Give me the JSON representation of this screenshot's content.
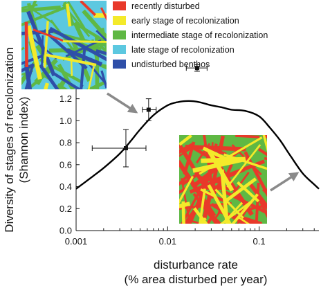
{
  "chart_data": {
    "type": "scatter",
    "x_scale": "log",
    "xlim": [
      0.001,
      0.45
    ],
    "ylim": [
      0,
      1.5
    ],
    "x_ticks": [
      0.001,
      0.01,
      0.1
    ],
    "x_tick_labels": [
      "0.001",
      "0.01",
      "0.1"
    ],
    "y_ticks": [
      0.0,
      0.2,
      0.4,
      0.6,
      0.8,
      1.0,
      1.2
    ],
    "y_tick_labels": [
      "0.0",
      "0.2",
      "0.4",
      "0.6",
      "0.8",
      "1.0",
      "1.2"
    ],
    "xlabel_line1": "disturbance rate",
    "xlabel_line2": "(% area disturbed per year)",
    "ylabel_line1": "Diversity of stages of recolonization",
    "ylabel_line2": "(Shannon index)",
    "points": [
      {
        "x": 0.0035,
        "y": 0.75,
        "x_err": [
          0.0015,
          0.0058
        ],
        "y_err": [
          0.58,
          0.92
        ]
      },
      {
        "x": 0.0062,
        "y": 1.1,
        "x_err": [
          0.0053,
          0.0075
        ],
        "y_err": [
          1.0,
          1.2
        ]
      },
      {
        "x": 0.021,
        "y": 1.48,
        "x_err": [
          0.016,
          0.027
        ],
        "y_err": [
          1.45,
          1.51
        ]
      }
    ],
    "curve": {
      "x": [
        0.001,
        0.0015,
        0.002,
        0.003,
        0.004,
        0.005,
        0.007,
        0.01,
        0.013,
        0.017,
        0.022,
        0.03,
        0.04,
        0.05,
        0.07,
        0.1,
        0.13,
        0.17,
        0.22,
        0.3,
        0.4,
        0.45
      ],
      "y": [
        0.38,
        0.49,
        0.57,
        0.7,
        0.82,
        0.92,
        1.05,
        1.14,
        1.17,
        1.18,
        1.17,
        1.14,
        1.12,
        1.1,
        1.09,
        1.04,
        0.94,
        0.82,
        0.68,
        0.52,
        0.42,
        0.38
      ]
    },
    "legend": {
      "position": "top",
      "items": [
        {
          "label": "recently disturbed",
          "color": "#e8392a"
        },
        {
          "label": "early stage of recolonization",
          "color": "#f4ea2a"
        },
        {
          "label": "intermediate stage of recolonization",
          "color": "#5fb844"
        },
        {
          "label": "late stage of recolonization",
          "color": "#5cc8e0"
        },
        {
          "label": "undisturbed benthos",
          "color": "#2f4fa8"
        }
      ]
    },
    "insets": [
      {
        "name": "low-disturbance-map",
        "stage_colors": [
          "#5cc8e0",
          "#5fb844",
          "#2f4fa8",
          "#f4ea2a",
          "#e8392a"
        ]
      },
      {
        "name": "high-disturbance-map",
        "stage_colors": [
          "#5fb844",
          "#e8392a",
          "#f4ea2a"
        ]
      }
    ]
  }
}
